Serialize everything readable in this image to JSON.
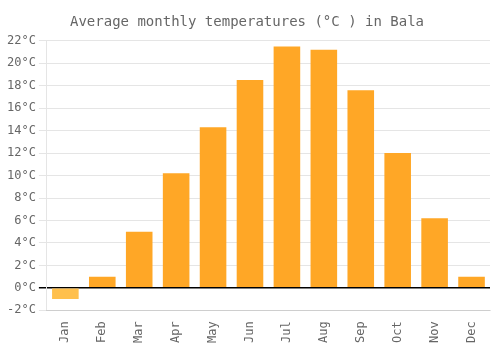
{
  "chart_data": {
    "type": "bar",
    "title": "Average monthly temperatures (°C ) in Bala",
    "categories": [
      "Jan",
      "Feb",
      "Mar",
      "Apr",
      "May",
      "Jun",
      "Jul",
      "Aug",
      "Sep",
      "Oct",
      "Nov",
      "Dec"
    ],
    "values": [
      -1.0,
      1.0,
      5.0,
      10.2,
      14.3,
      18.5,
      21.5,
      21.2,
      17.6,
      12.0,
      6.2,
      1.0
    ],
    "colors": [
      "#FFC04D",
      "#FFA726",
      "#FFA726",
      "#FFA726",
      "#FFA726",
      "#FFA726",
      "#FFA726",
      "#FFA726",
      "#FFA726",
      "#FFA726",
      "#FFA726",
      "#FFA726"
    ],
    "ylim": [
      -2,
      22
    ],
    "yticks": [
      {
        "value": -2,
        "label": "-2°C"
      },
      {
        "value": 0,
        "label": "0°C"
      },
      {
        "value": 2,
        "label": "2°C"
      },
      {
        "value": 4,
        "label": "4°C"
      },
      {
        "value": 6,
        "label": "6°C"
      },
      {
        "value": 8,
        "label": "8°C"
      },
      {
        "value": 10,
        "label": "10°C"
      },
      {
        "value": 12,
        "label": "12°C"
      },
      {
        "value": 14,
        "label": "14°C"
      },
      {
        "value": 16,
        "label": "16°C"
      },
      {
        "value": 18,
        "label": "18°C"
      },
      {
        "value": 20,
        "label": "20°C"
      },
      {
        "value": 22,
        "label": "22°C"
      }
    ],
    "grid": true
  }
}
